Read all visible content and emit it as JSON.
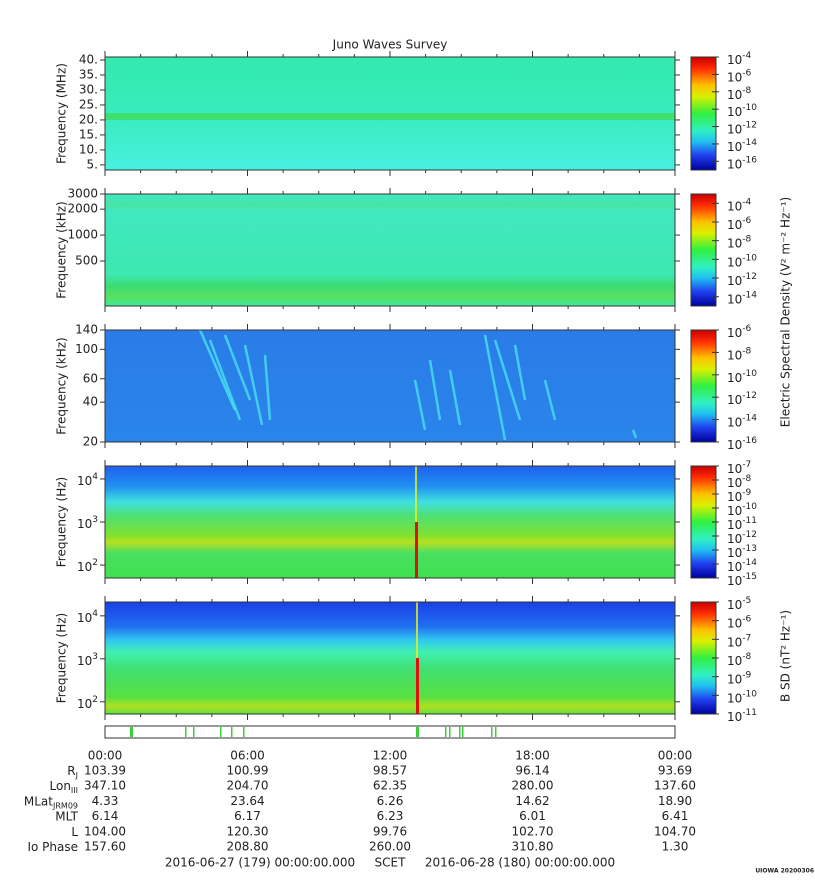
{
  "title": "Juno Waves Survey",
  "panels": [
    {
      "ylabel": "Frequency (MHz)",
      "yscale": "linear",
      "ylim": [
        3.3,
        41
      ],
      "yticks": [
        {
          "value": 5,
          "label": "5."
        },
        {
          "value": 10,
          "label": "10."
        },
        {
          "value": 15,
          "label": "15."
        },
        {
          "value": 20,
          "label": "20."
        },
        {
          "value": 25,
          "label": "25."
        },
        {
          "value": 30,
          "label": "30."
        },
        {
          "value": 35,
          "label": "35."
        },
        {
          "value": 40,
          "label": "40."
        }
      ],
      "clim": [
        1e-17,
        0.0001
      ],
      "cticks": [
        {
          "value": 0.0001,
          "base": "10",
          "exp": "-4"
        },
        {
          "value": 1e-06,
          "base": "10",
          "exp": "-6"
        },
        {
          "value": 1e-08,
          "base": "10",
          "exp": "-8"
        },
        {
          "value": 1e-10,
          "base": "10",
          "exp": "-10"
        },
        {
          "value": 1e-12,
          "base": "10",
          "exp": "-12"
        },
        {
          "value": 1e-14,
          "base": "10",
          "exp": "-14"
        },
        {
          "value": 1e-16,
          "base": "10",
          "exp": "-16"
        }
      ]
    },
    {
      "ylabel": "Frequency (kHz)",
      "yscale": "log",
      "ylim": [
        150,
        3000
      ],
      "yticks": [
        500,
        1000,
        2000,
        3000
      ],
      "clim": [
        1e-15,
        0.001
      ],
      "cticks": [
        {
          "value": 0.0001,
          "base": "10",
          "exp": "-4"
        },
        {
          "value": 1e-06,
          "base": "10",
          "exp": "-6"
        },
        {
          "value": 1e-08,
          "base": "10",
          "exp": "-8"
        },
        {
          "value": 1e-10,
          "base": "10",
          "exp": "-10"
        },
        {
          "value": 1e-12,
          "base": "10",
          "exp": "-12"
        },
        {
          "value": 1e-14,
          "base": "10",
          "exp": "-14"
        }
      ]
    },
    {
      "ylabel": "Frequency (kHz)",
      "yscale": "log",
      "ylim": [
        20,
        140
      ],
      "yticks": [
        20,
        40,
        60,
        100,
        140
      ],
      "clim": [
        1e-16,
        1e-06
      ],
      "cticks": [
        {
          "value": 1e-06,
          "base": "10",
          "exp": "-6"
        },
        {
          "value": 1e-08,
          "base": "10",
          "exp": "-8"
        },
        {
          "value": 1e-10,
          "base": "10",
          "exp": "-10"
        },
        {
          "value": 1e-12,
          "base": "10",
          "exp": "-12"
        },
        {
          "value": 1e-14,
          "base": "10",
          "exp": "-14"
        },
        {
          "value": 1e-16,
          "base": "10",
          "exp": "-16"
        }
      ]
    },
    {
      "ylabel": "Frequency (Hz)",
      "yscale": "log",
      "ylim": [
        50,
        20000
      ],
      "yticks": [
        {
          "value": 100,
          "base": "10",
          "exp": "2"
        },
        {
          "value": 1000,
          "base": "10",
          "exp": "3"
        },
        {
          "value": 10000,
          "base": "10",
          "exp": "4"
        }
      ],
      "clim": [
        1e-15,
        1e-07
      ],
      "cticks": [
        {
          "value": 1e-07,
          "base": "10",
          "exp": "-7"
        },
        {
          "value": 1e-08,
          "base": "10",
          "exp": "-8"
        },
        {
          "value": 1e-09,
          "base": "10",
          "exp": "-9"
        },
        {
          "value": 1e-10,
          "base": "10",
          "exp": "-10"
        },
        {
          "value": 1e-11,
          "base": "10",
          "exp": "-11"
        },
        {
          "value": 1e-12,
          "base": "10",
          "exp": "-12"
        },
        {
          "value": 1e-13,
          "base": "10",
          "exp": "-13"
        },
        {
          "value": 1e-14,
          "base": "10",
          "exp": "-14"
        },
        {
          "value": 1e-15,
          "base": "10",
          "exp": "-15"
        }
      ]
    },
    {
      "ylabel": "Frequency (Hz)",
      "yscale": "log",
      "ylim": [
        52,
        21000
      ],
      "yticks": [
        {
          "value": 100,
          "base": "10",
          "exp": "2"
        },
        {
          "value": 1000,
          "base": "10",
          "exp": "3"
        },
        {
          "value": 10000,
          "base": "10",
          "exp": "4"
        }
      ],
      "clim": [
        1e-11,
        1e-05
      ],
      "cticks": [
        {
          "value": 1e-05,
          "base": "10",
          "exp": "-5"
        },
        {
          "value": 1e-06,
          "base": "10",
          "exp": "-6"
        },
        {
          "value": 1e-07,
          "base": "10",
          "exp": "-7"
        },
        {
          "value": 1e-08,
          "base": "10",
          "exp": "-8"
        },
        {
          "value": 1e-09,
          "base": "10",
          "exp": "-9"
        },
        {
          "value": 1e-10,
          "base": "10",
          "exp": "-10"
        },
        {
          "value": 1e-11,
          "base": "10",
          "exp": "-11"
        }
      ]
    }
  ],
  "colorbar_labels": [
    "Electric Spectral Density (V² m⁻² Hz⁻¹)",
    "B SD (nT² Hz⁻¹)"
  ],
  "ephemeris": {
    "time_labels": [
      "00:00",
      "06:00",
      "12:00",
      "18:00",
      "00:00"
    ],
    "rows": [
      {
        "label": {
          "text": "R",
          "sub": "J"
        },
        "values": [
          "103.39",
          "100.99",
          "98.57",
          "96.14",
          "93.69"
        ]
      },
      {
        "label": {
          "text": "Lon",
          "sub": "III"
        },
        "values": [
          "347.10",
          "204.70",
          "62.35",
          "280.00",
          "137.60"
        ]
      },
      {
        "label": {
          "text": "MLat",
          "sub": "JRM09"
        },
        "values": [
          "4.33",
          "23.64",
          "6.26",
          "14.62",
          "18.90"
        ]
      },
      {
        "label": {
          "text": "MLT"
        },
        "values": [
          "6.14",
          "6.17",
          "6.23",
          "6.01",
          "6.41"
        ]
      },
      {
        "label": {
          "text": "L"
        },
        "values": [
          "104.00",
          "120.30",
          "99.76",
          "102.70",
          "104.70"
        ]
      },
      {
        "label": {
          "text": "Io Phase"
        },
        "values": [
          "157.60",
          "208.80",
          "260.00",
          "310.80",
          "1.30"
        ]
      }
    ]
  },
  "footer": {
    "start": "2016-06-27 (179) 00:00:00.000",
    "scet": "SCET",
    "end": "2016-06-28 (180) 00:00:00.000"
  },
  "credit": "UIOWA 20200306"
}
